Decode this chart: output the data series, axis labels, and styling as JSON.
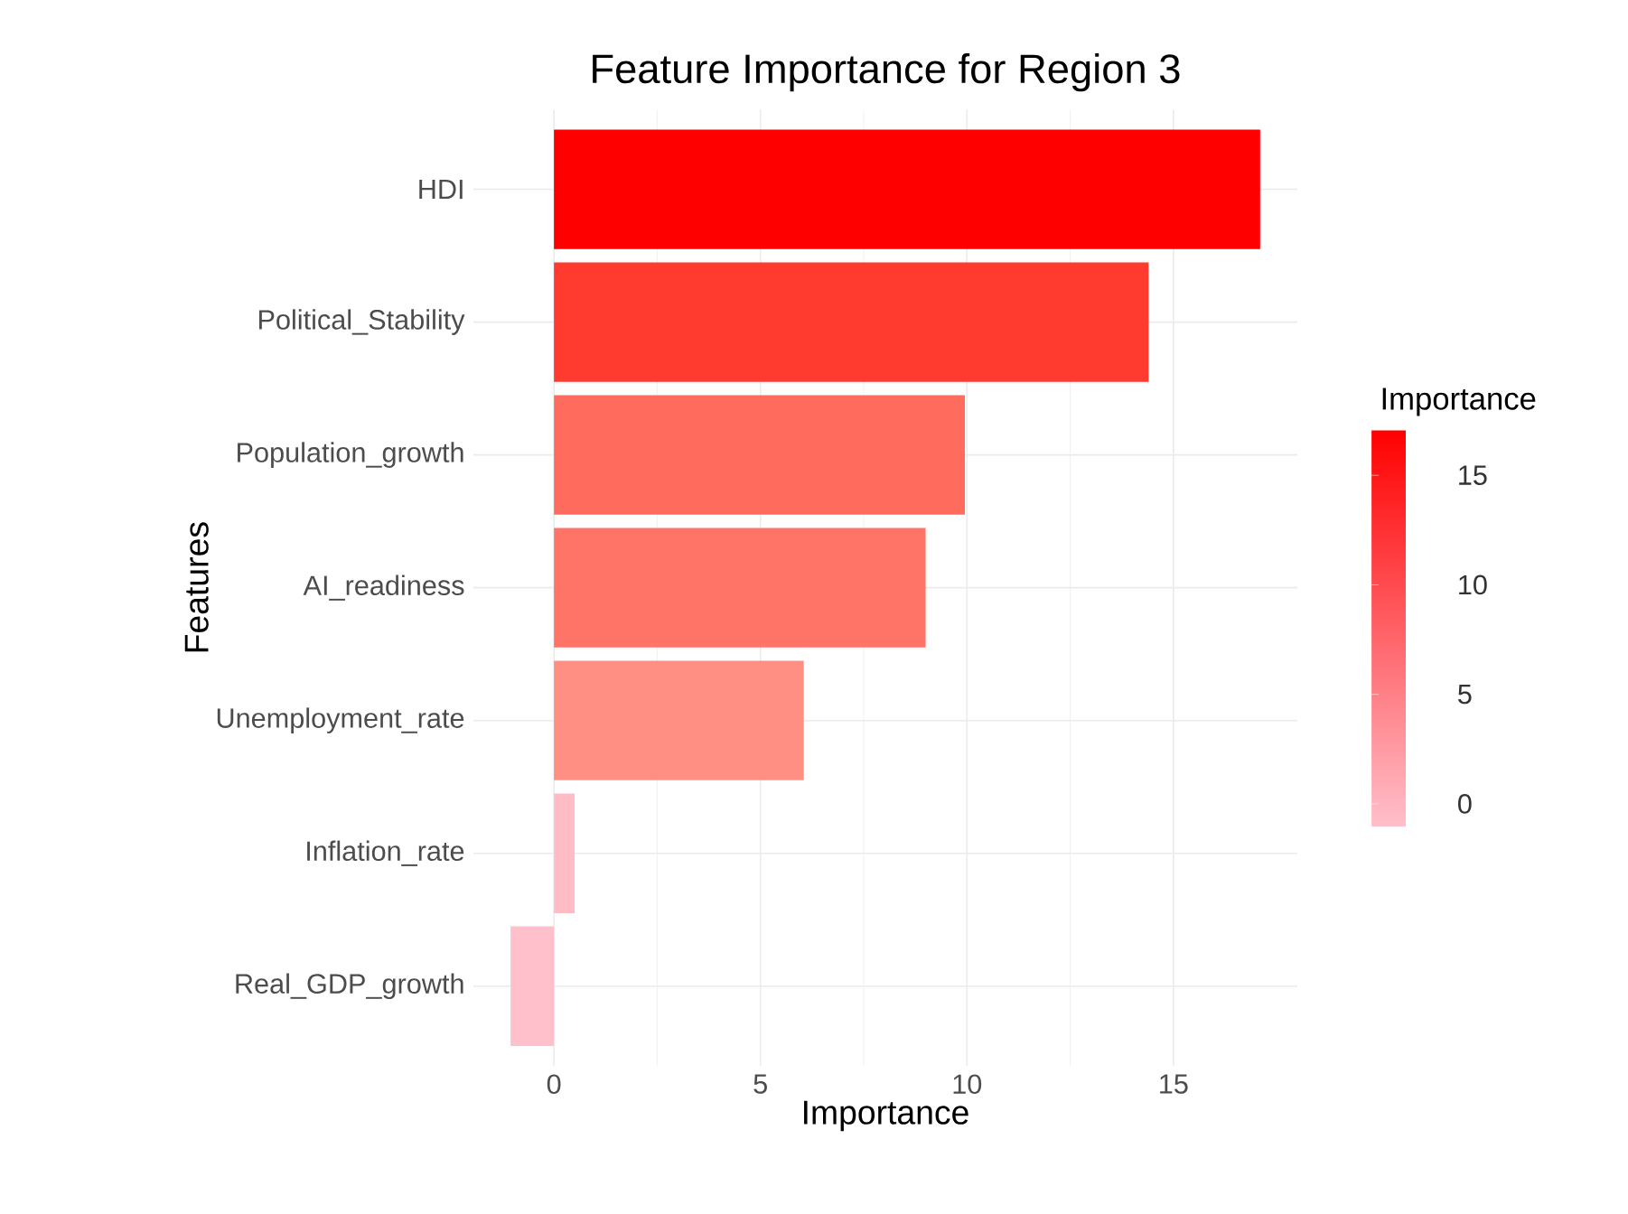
{
  "chart_data": {
    "type": "bar",
    "orientation": "horizontal",
    "title": "Feature Importance for Region 3",
    "xlabel": "Importance",
    "ylabel": "Features",
    "categories": [
      "HDI",
      "Political_Stability",
      "Population_growth",
      "AI_readiness",
      "Unemployment_rate",
      "Inflation_rate",
      "Real_GDP_growth"
    ],
    "values": [
      17.1,
      14.4,
      9.95,
      9.0,
      6.05,
      0.5,
      -1.05
    ],
    "colors": [
      "#ff0000",
      "#ff3a2e",
      "#ff6b5d",
      "#ff7467",
      "#ff8f83",
      "#ffbcc5",
      "#ffc0cb"
    ],
    "xlim": [
      -1.95,
      18.0
    ],
    "xticks": [
      0,
      5,
      10,
      15
    ],
    "grid": true,
    "clabel": "Importance",
    "clim": [
      -1.05,
      17.1
    ],
    "cticks": [
      0,
      5,
      10,
      15
    ]
  }
}
